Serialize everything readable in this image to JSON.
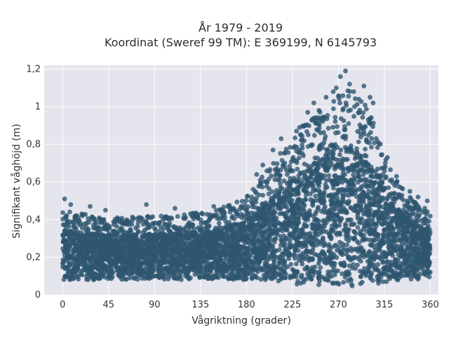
{
  "chart_data": {
    "type": "scatter",
    "title": "År 1979 - 2019",
    "subtitle": "Koordinat (Sweref 99 TM): E 369199, N 6145793",
    "xlabel": "Vågriktning (grader)",
    "ylabel": "Signifikant våghöjd (m)",
    "xlim": [
      -18,
      368
    ],
    "ylim": [
      0,
      1.22
    ],
    "xticks": [
      0,
      45,
      90,
      135,
      180,
      225,
      270,
      315,
      360
    ],
    "yticks": [
      0,
      0.2,
      0.4,
      0.6,
      0.8,
      1,
      1.2
    ],
    "ytick_labels": [
      "0",
      "0,2",
      "0,4",
      "0,6",
      "0,8",
      "1",
      "1,2"
    ],
    "grid": true,
    "marker_color": "#2e5670",
    "background_color": "#e5e5ee",
    "envelope": {
      "direction": [
        0,
        20,
        45,
        90,
        120,
        150,
        180,
        200,
        225,
        240,
        255,
        270,
        280,
        295,
        310,
        320,
        335,
        350,
        360
      ],
      "lower": [
        0.08,
        0.08,
        0.08,
        0.08,
        0.08,
        0.08,
        0.08,
        0.07,
        0.06,
        0.05,
        0.05,
        0.04,
        0.04,
        0.05,
        0.06,
        0.07,
        0.08,
        0.08,
        0.09
      ],
      "upper": [
        0.45,
        0.43,
        0.41,
        0.42,
        0.43,
        0.45,
        0.52,
        0.66,
        0.84,
        0.93,
        0.99,
        1.08,
        1.12,
        1.03,
        0.85,
        0.68,
        0.55,
        0.47,
        0.45
      ]
    },
    "peak_points": [
      {
        "x": 277,
        "y": 1.19
      },
      {
        "x": 272,
        "y": 1.16
      },
      {
        "x": 281,
        "y": 1.12
      },
      {
        "x": 265,
        "y": 1.08
      },
      {
        "x": 295,
        "y": 1.11
      },
      {
        "x": 246,
        "y": 1.02
      },
      {
        "x": 251,
        "y": 0.98
      },
      {
        "x": 258,
        "y": 1.05
      },
      {
        "x": 301,
        "y": 1.05
      },
      {
        "x": 290,
        "y": 1.04
      },
      {
        "x": 285,
        "y": 1.08
      },
      {
        "x": 268,
        "y": 1.1
      },
      {
        "x": 240,
        "y": 0.97
      },
      {
        "x": 304,
        "y": 1.02
      },
      {
        "x": 229,
        "y": 0.87
      },
      {
        "x": 232,
        "y": 0.89
      },
      {
        "x": 206,
        "y": 0.77
      },
      {
        "x": 214,
        "y": 0.83
      },
      {
        "x": 196,
        "y": 0.69
      },
      {
        "x": 190,
        "y": 0.64
      },
      {
        "x": 340,
        "y": 0.55
      },
      {
        "x": 348,
        "y": 0.52
      },
      {
        "x": 357,
        "y": 0.5
      },
      {
        "x": 2,
        "y": 0.51
      },
      {
        "x": 8,
        "y": 0.48
      },
      {
        "x": 27,
        "y": 0.47
      },
      {
        "x": 42,
        "y": 0.45
      },
      {
        "x": 82,
        "y": 0.48
      },
      {
        "x": 110,
        "y": 0.46
      },
      {
        "x": 148,
        "y": 0.47
      },
      {
        "x": 318,
        "y": 0.73
      },
      {
        "x": 327,
        "y": 0.63
      }
    ]
  }
}
